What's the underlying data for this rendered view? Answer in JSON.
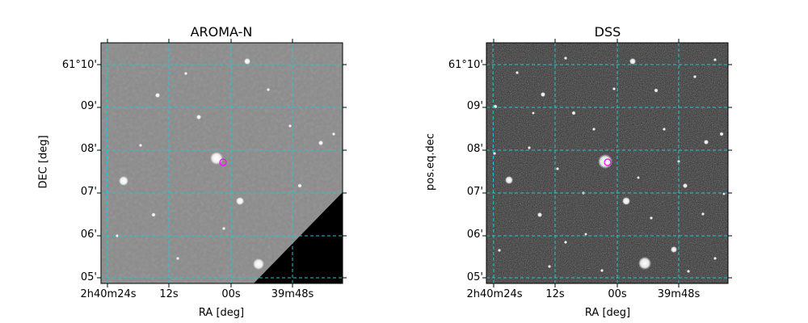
{
  "panels": [
    {
      "title": "AROMA-N",
      "xlabel": "RA [deg]",
      "ylabel": "DEC [deg]",
      "x_ticks": [
        "2h40m24s",
        "12s",
        "00s",
        "39m48s"
      ],
      "y_ticks": [
        "61°10'",
        "09'",
        "08'",
        "07'",
        "06'",
        "05'"
      ],
      "style": "smooth gray image",
      "background": "#8a8a8a",
      "has_missing_corner": true
    },
    {
      "title": "DSS",
      "xlabel": "RA [deg]",
      "ylabel": "pos.eq.dec",
      "x_ticks": [
        "2h40m24s",
        "12s",
        "00s",
        "39m48s"
      ],
      "y_ticks": [
        "61°10'",
        "09'",
        "08'",
        "07'",
        "06'",
        "05'"
      ],
      "style": "noisy dark image",
      "background": "#2b2b2b",
      "has_missing_corner": false
    }
  ],
  "colors": {
    "grid": "#1ec8d2",
    "marker": "#ff00ff"
  },
  "marker": {
    "shape": "circle",
    "color_name": "magenta"
  }
}
